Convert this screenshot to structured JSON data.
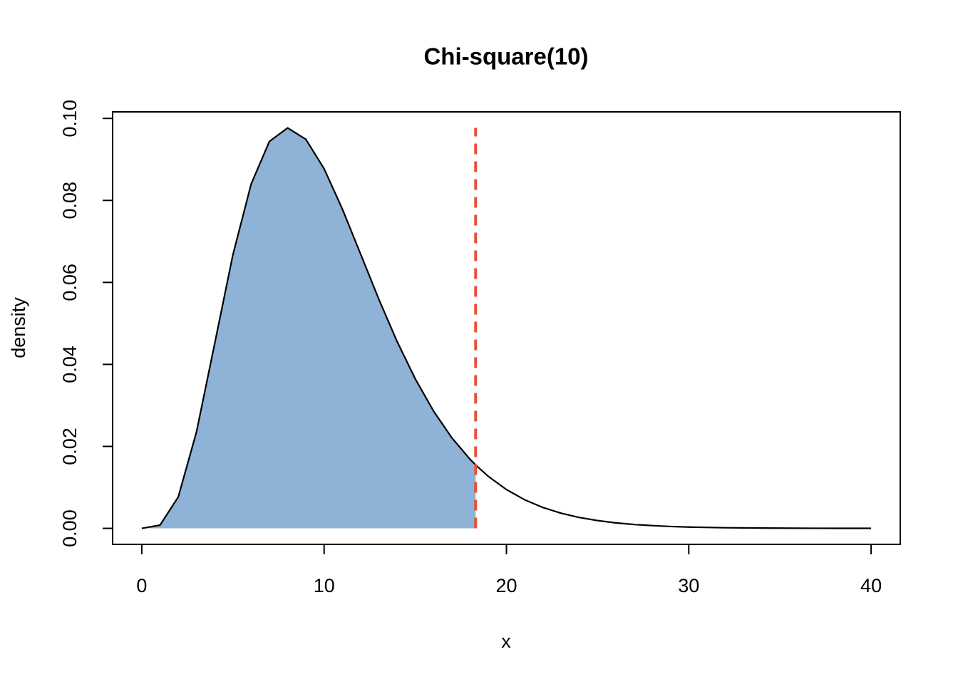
{
  "chart_data": {
    "type": "area-curve",
    "title": "Chi-square(10)",
    "x_label": "x",
    "y_label": "density",
    "x": [
      0,
      1,
      2,
      3,
      4,
      5,
      6,
      7,
      8,
      9,
      10,
      11,
      12,
      13,
      14,
      15,
      16,
      17,
      18,
      18.31,
      19,
      20,
      21,
      22,
      23,
      24,
      25,
      26,
      27,
      28,
      29,
      30,
      32,
      34,
      36,
      38,
      40
    ],
    "values": [
      0,
      0.00079,
      0.00766,
      0.02353,
      0.04511,
      0.0668,
      0.08402,
      0.0944,
      0.09768,
      0.0949,
      0.08773,
      0.07791,
      0.06693,
      0.05591,
      0.04561,
      0.03646,
      0.02863,
      0.02213,
      0.01687,
      0.01547,
      0.0127,
      0.00946,
      0.00697,
      0.00509,
      0.00369,
      0.00265,
      0.0019,
      0.00134,
      0.00095,
      0.00067,
      0.00046,
      0.00032,
      0.00015,
      7e-05,
      3e-05,
      1e-05,
      1e-05
    ],
    "color": "#000000",
    "fill_color": "#8fb3d6",
    "vline": {
      "x": 18.31,
      "y_end": 0.0977,
      "color": "#e8503a"
    },
    "xlim": [
      -1.6,
      41.6
    ],
    "ylim": [
      -0.0039,
      0.1016
    ],
    "xticks": [
      0,
      10,
      20,
      30,
      40
    ],
    "yticks": [
      {
        "value": 0,
        "label": "0.00"
      },
      {
        "value": 0.02,
        "label": "0.02"
      },
      {
        "value": 0.04,
        "label": "0.04"
      },
      {
        "value": 0.06,
        "label": "0.06"
      },
      {
        "value": 0.08,
        "label": "0.08"
      },
      {
        "value": 0.1,
        "label": "0.10"
      }
    ]
  }
}
